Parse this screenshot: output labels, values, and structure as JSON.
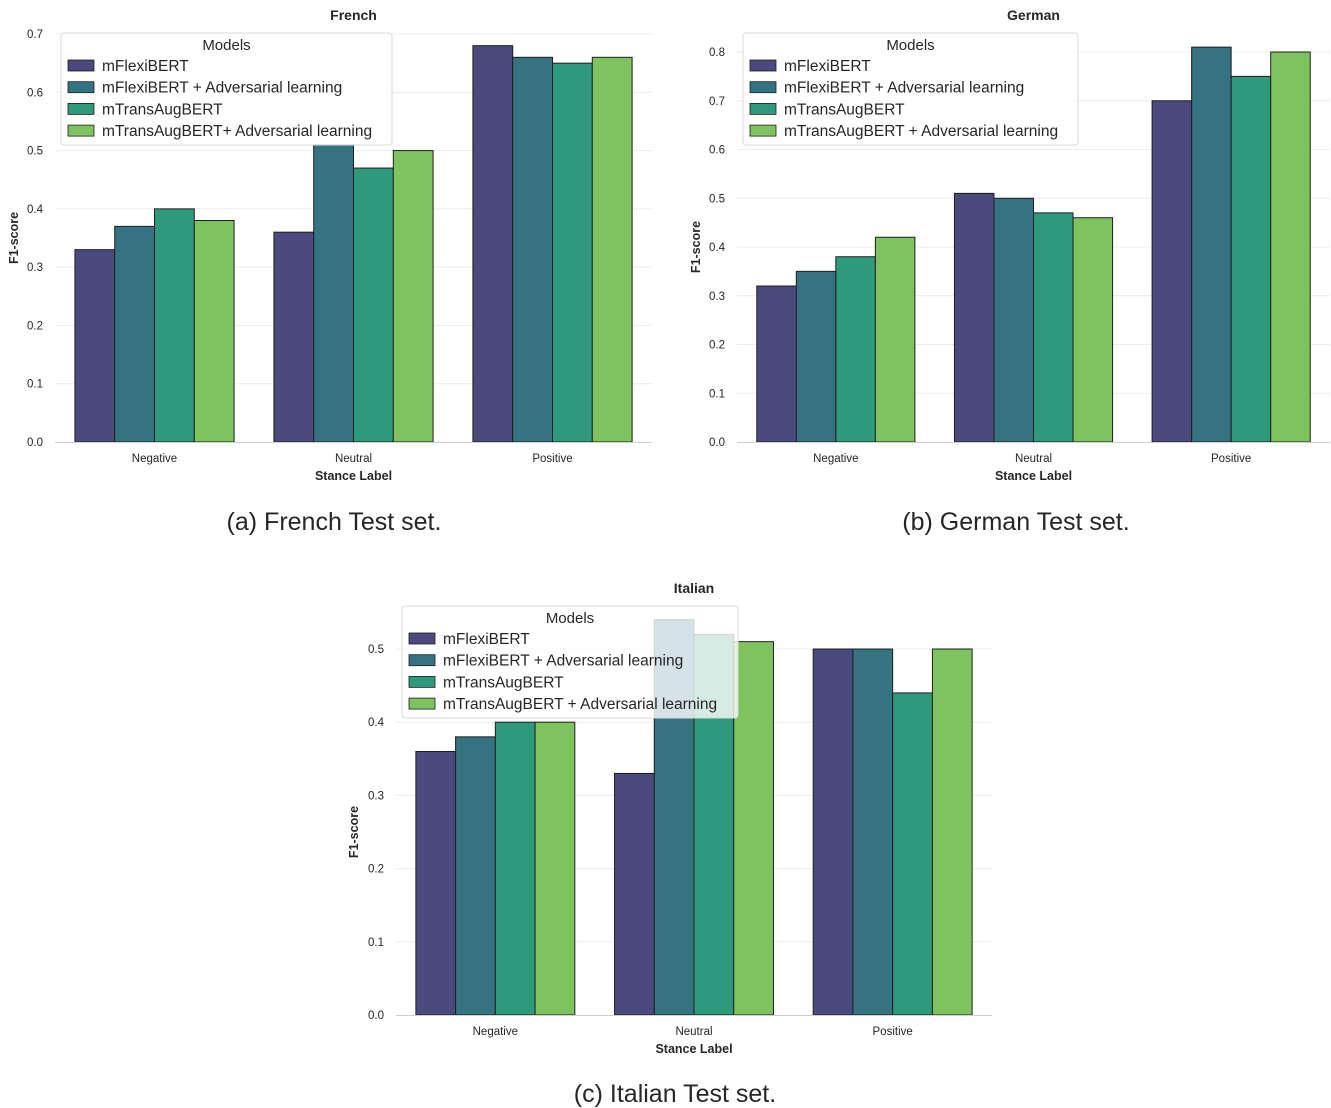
{
  "colors": {
    "series": [
      "#4a4a7e",
      "#357282",
      "#2f9a7b",
      "#7fc35f"
    ]
  },
  "chart_data": [
    {
      "type": "bar",
      "title": "French",
      "caption": "(a) French Test set.",
      "xlabel": "Stance Label",
      "ylabel": "F1-score",
      "categories": [
        "Negative",
        "Neutral",
        "Positive"
      ],
      "ylim": [
        0,
        0.7
      ],
      "yticks": [
        "0.0",
        "0.1",
        "0.2",
        "0.3",
        "0.4",
        "0.5",
        "0.6",
        "0.7"
      ],
      "legend_title": "Models",
      "legend_position": "top-left",
      "series": [
        {
          "name": "mFlexiBERT",
          "values": [
            0.33,
            0.36,
            0.68
          ]
        },
        {
          "name": "mFlexiBERT + Adversarial learning",
          "values": [
            0.37,
            0.51,
            0.66
          ]
        },
        {
          "name": "mTransAugBERT",
          "values": [
            0.4,
            0.47,
            0.65
          ]
        },
        {
          "name": "mTransAugBERT+ Adversarial learning",
          "values": [
            0.38,
            0.5,
            0.66
          ]
        }
      ]
    },
    {
      "type": "bar",
      "title": "German",
      "caption": "(b) German Test set.",
      "xlabel": "Stance Label",
      "ylabel": "F1-score",
      "categories": [
        "Negative",
        "Neutral",
        "Positive"
      ],
      "ylim": [
        0,
        0.8
      ],
      "yticks": [
        "0.0",
        "0.1",
        "0.2",
        "0.3",
        "0.4",
        "0.5",
        "0.6",
        "0.7",
        "0.8"
      ],
      "legend_title": "Models",
      "legend_position": "top-left",
      "series": [
        {
          "name": "mFlexiBERT",
          "values": [
            0.32,
            0.51,
            0.7
          ]
        },
        {
          "name": "mFlexiBERT + Adversarial learning",
          "values": [
            0.35,
            0.5,
            0.81
          ]
        },
        {
          "name": "mTransAugBERT",
          "values": [
            0.38,
            0.47,
            0.75
          ]
        },
        {
          "name": "mTransAugBERT + Adversarial learning",
          "values": [
            0.42,
            0.46,
            0.8
          ]
        }
      ]
    },
    {
      "type": "bar",
      "title": "Italian",
      "caption": "(c) Italian Test set.",
      "xlabel": "Stance Label",
      "ylabel": "F1-score",
      "categories": [
        "Negative",
        "Neutral",
        "Positive"
      ],
      "ylim": [
        0,
        0.5
      ],
      "yticks": [
        "0.0",
        "0.1",
        "0.2",
        "0.3",
        "0.4",
        "0.5"
      ],
      "legend_title": "Models",
      "legend_position": "top-left",
      "series": [
        {
          "name": "mFlexiBERT",
          "values": [
            0.36,
            0.33,
            0.5
          ]
        },
        {
          "name": "mFlexiBERT + Adversarial learning",
          "values": [
            0.38,
            0.54,
            0.5
          ]
        },
        {
          "name": "mTransAugBERT",
          "values": [
            0.4,
            0.52,
            0.44
          ]
        },
        {
          "name": "mTransAugBERT + Adversarial learning",
          "values": [
            0.4,
            0.51,
            0.5
          ]
        }
      ]
    }
  ]
}
